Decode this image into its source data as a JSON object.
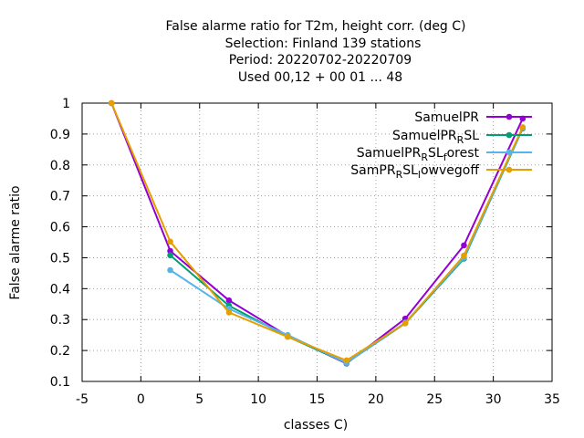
{
  "chart_data": {
    "type": "line",
    "title_lines": [
      "False alarme ratio  for T2m, height corr. (deg C)",
      "Selection: Finland    139 stations",
      "Period: 20220702-20220709",
      "Used  00,12  + 00 01 ... 48"
    ],
    "xlabel": "classes C)",
    "ylabel": "False alarme ratio",
    "xlim": [
      -5,
      35
    ],
    "ylim": [
      0.1,
      1
    ],
    "xticks": [
      "-5",
      "0",
      "5",
      "10",
      "15",
      "20",
      "25",
      "30",
      "35"
    ],
    "yticks": [
      "0.1",
      "0.2",
      "0.3",
      "0.4",
      "0.5",
      "0.6",
      "0.7",
      "0.8",
      "0.9",
      "1"
    ],
    "grid": true,
    "legend_position": "top-right",
    "series": [
      {
        "name": "SamuelPR",
        "legend_parts": [
          [
            "SamuelPR",
            "n"
          ]
        ],
        "color": "#9400d3",
        "x": [
          -2.5,
          2.5,
          7.5,
          12.5,
          17.5,
          22.5,
          27.5,
          32.5
        ],
        "y": [
          1.0,
          0.522,
          0.362,
          0.247,
          0.158,
          0.303,
          0.54,
          0.95
        ]
      },
      {
        "name": "SamuelPR_RSL",
        "legend_parts": [
          [
            "SamuelPR",
            "n"
          ],
          [
            "R",
            "sub"
          ],
          [
            "SL",
            "n"
          ]
        ],
        "color": "#009e73",
        "x": [
          2.5,
          7.5,
          12.5,
          17.5,
          22.5,
          27.5,
          32.5
        ],
        "y": [
          0.508,
          0.345,
          0.245,
          0.16,
          0.288,
          0.497,
          0.918
        ]
      },
      {
        "name": "SamuelPR_RSL_forest",
        "legend_parts": [
          [
            "SamuelPR",
            "n"
          ],
          [
            "R",
            "sub"
          ],
          [
            "SL",
            "n"
          ],
          [
            "f",
            "sub"
          ],
          [
            "orest",
            "n"
          ]
        ],
        "color": "#56b4e9",
        "x": [
          2.5,
          7.5,
          12.5,
          17.5,
          22.5,
          27.5,
          32.5
        ],
        "y": [
          0.46,
          0.335,
          0.25,
          0.16,
          0.29,
          0.5,
          0.92
        ]
      },
      {
        "name": "SamPR_RSL_lowvegoff",
        "legend_parts": [
          [
            "SamPR",
            "n"
          ],
          [
            "R",
            "sub"
          ],
          [
            "SL",
            "n"
          ],
          [
            "l",
            "sub"
          ],
          [
            "owvegoff",
            "n"
          ]
        ],
        "color": "#e69f00",
        "x": [
          -2.5,
          2.5,
          7.5,
          12.5,
          17.5,
          22.5,
          27.5,
          32.5
        ],
        "y": [
          1.0,
          0.552,
          0.323,
          0.244,
          0.168,
          0.288,
          0.507,
          0.922
        ]
      }
    ]
  }
}
